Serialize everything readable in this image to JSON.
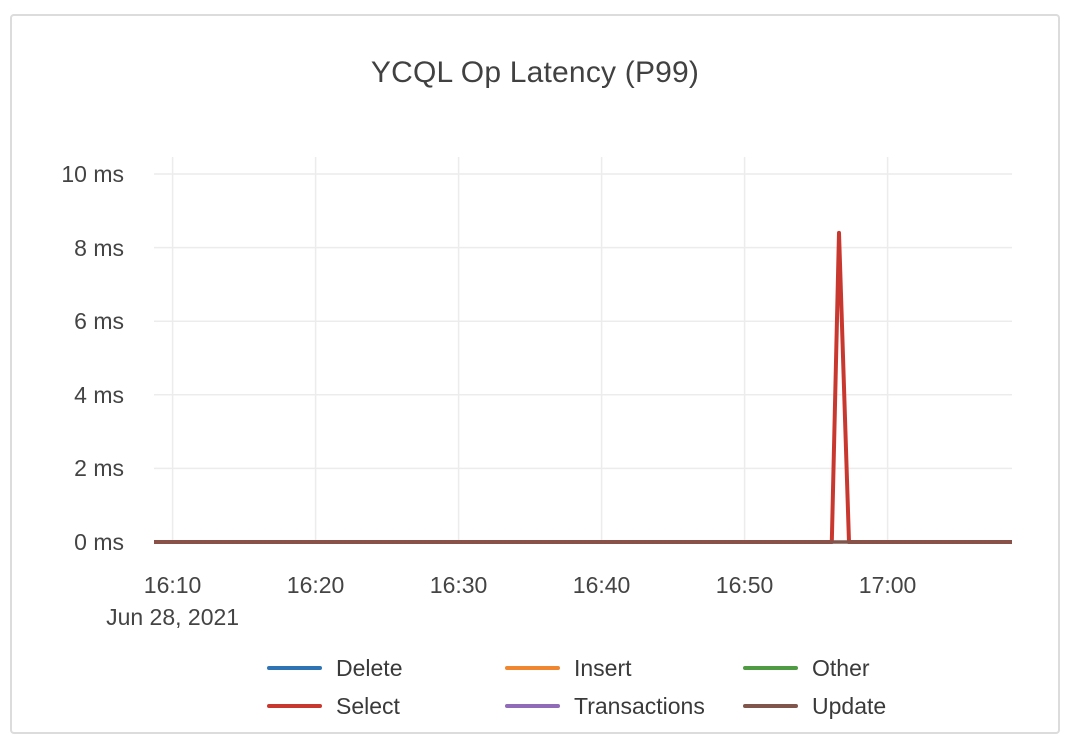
{
  "card": {
    "background": "#ffffff",
    "border_color": "#dcdcdc"
  },
  "chart_data": {
    "type": "line",
    "title": "YCQL Op Latency (P99)",
    "title_color": "#414141",
    "axis_label_color": "#444444",
    "grid_color": "#ececec",
    "grid": true,
    "legend_position": "bottom",
    "date_label": "Jun 28, 2021",
    "y_unit": "ms",
    "x_unit": "time of day (HH:MM), minutes after 16:00",
    "x_domain_minutes": [
      8.7,
      68.7
    ],
    "ylim": [
      0,
      10.4
    ],
    "x_ticks": [
      {
        "t": 10,
        "label": "16:10"
      },
      {
        "t": 20,
        "label": "16:20"
      },
      {
        "t": 30,
        "label": "16:30"
      },
      {
        "t": 40,
        "label": "16:40"
      },
      {
        "t": 50,
        "label": "16:50"
      },
      {
        "t": 60,
        "label": "17:00"
      }
    ],
    "y_ticks": [
      {
        "v": 0,
        "label": "0 ms"
      },
      {
        "v": 2,
        "label": "2 ms"
      },
      {
        "v": 4,
        "label": "4 ms"
      },
      {
        "v": 6,
        "label": "6 ms"
      },
      {
        "v": 8,
        "label": "8 ms"
      },
      {
        "v": 10,
        "label": "10 ms"
      }
    ],
    "spike_annotation": {
      "series": "Select",
      "time": "16:56:30",
      "value_ms": 8.4
    },
    "series": [
      {
        "name": "Delete",
        "color": "#2e74b5",
        "width": 3,
        "points": [
          [
            8.7,
            0
          ],
          [
            68.7,
            0
          ]
        ]
      },
      {
        "name": "Insert",
        "color": "#f0862f",
        "width": 3,
        "points": [
          [
            8.7,
            0
          ],
          [
            68.7,
            0
          ]
        ]
      },
      {
        "name": "Other",
        "color": "#4f9b43",
        "width": 3,
        "points": [
          [
            8.7,
            0
          ],
          [
            68.7,
            0
          ]
        ]
      },
      {
        "name": "Select",
        "color": "#c9382f",
        "width": 4,
        "points": [
          [
            8.7,
            0
          ],
          [
            56.1,
            0
          ],
          [
            56.6,
            8.4
          ],
          [
            57.3,
            0
          ],
          [
            68.7,
            0
          ]
        ]
      },
      {
        "name": "Transactions",
        "color": "#8f6bb8",
        "width": 3,
        "points": [
          [
            8.7,
            0
          ],
          [
            68.7,
            0
          ]
        ]
      },
      {
        "name": "Update",
        "color": "#80564c",
        "width": 3.5,
        "points": [
          [
            8.7,
            0
          ],
          [
            68.7,
            0
          ]
        ]
      }
    ]
  }
}
